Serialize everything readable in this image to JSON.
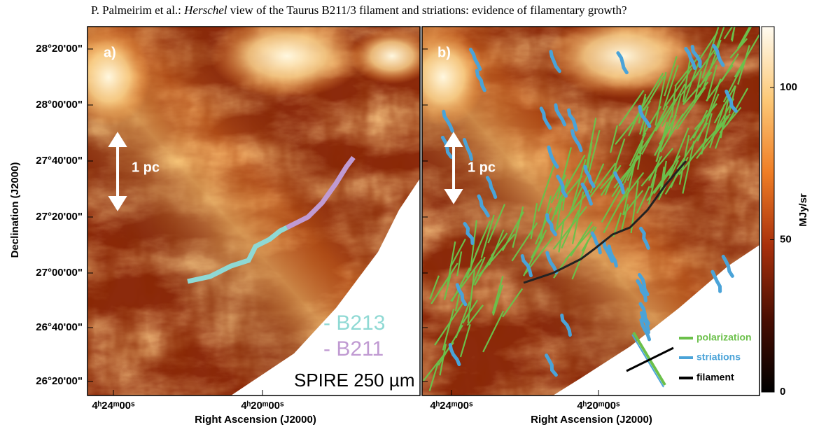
{
  "header": {
    "authors": "P. Palmeirim et al.:",
    "italic": "Herschel",
    "rest": "view of the Taurus B211/3 filament and striations: evidence of filamentary growth?"
  },
  "y_axis": {
    "label": "Declination (J2000)",
    "ticks": [
      "28°20'00\"",
      "28°00'00\"",
      "27°40'00\"",
      "27°20'00\"",
      "27°00'00\"",
      "26°40'00\"",
      "26°20'00\""
    ]
  },
  "panels": [
    {
      "label": "a)",
      "scale_bar": "1 pc",
      "x_axis": {
        "label": "Right Ascension (J2000)",
        "ticks": [
          "4ʰ24ᵐ00ˢ",
          "4ʰ20ᵐ00ˢ"
        ]
      },
      "legend": [
        "- B213",
        "- B211",
        "SPIRE 250 µm"
      ]
    },
    {
      "label": "b)",
      "scale_bar": "1 pc",
      "x_axis": {
        "label": "Right Ascension (J2000)",
        "ticks": [
          "4ʰ24ᵐ00ˢ",
          "4ʰ20ᵐ00ˢ"
        ]
      },
      "legend": [
        "polarization",
        "striations",
        "filament"
      ]
    }
  ],
  "colorbar": {
    "label": "MJy/sr",
    "lim": [
      0,
      120
    ],
    "ticks": [
      0,
      50,
      100
    ]
  }
}
